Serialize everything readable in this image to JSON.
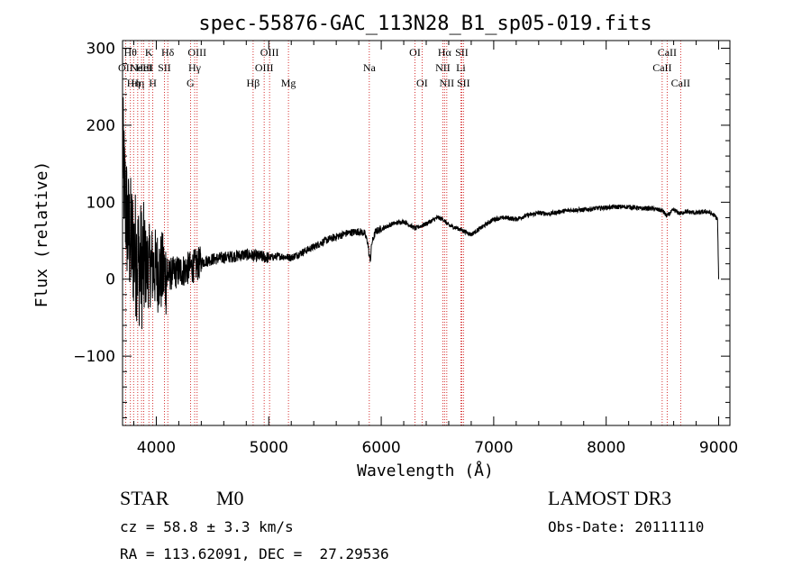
{
  "chart_data": {
    "type": "line",
    "title": "spec-55876-GAC_113N28_B1_sp05-019.fits",
    "xlabel": "Wavelength (Å)",
    "ylabel": "Flux (relative)",
    "xlim": [
      3700,
      9100
    ],
    "ylim": [
      -190,
      310
    ],
    "x_ticks": [
      4000,
      5000,
      6000,
      7000,
      8000,
      9000
    ],
    "x_tick_labels": [
      "4000",
      "5000",
      "6000",
      "7000",
      "8000",
      "9000"
    ],
    "y_ticks": [
      -100,
      0,
      100,
      200,
      300
    ],
    "y_tick_labels": [
      "−100",
      "0",
      "100",
      "200",
      "300"
    ],
    "grid": false,
    "series": [
      {
        "name": "spectrum",
        "color": "#000000",
        "anchors": [
          [
            3700,
            170
          ],
          [
            3720,
            110
          ],
          [
            3750,
            60
          ],
          [
            3800,
            40
          ],
          [
            3850,
            20
          ],
          [
            3900,
            15
          ],
          [
            3950,
            18
          ],
          [
            4000,
            12
          ],
          [
            4050,
            8
          ],
          [
            4100,
            5
          ],
          [
            4150,
            8
          ],
          [
            4200,
            10
          ],
          [
            4250,
            12
          ],
          [
            4300,
            15
          ],
          [
            4350,
            18
          ],
          [
            4400,
            22
          ],
          [
            4450,
            24
          ],
          [
            4500,
            26
          ],
          [
            4600,
            28
          ],
          [
            4700,
            30
          ],
          [
            4800,
            32
          ],
          [
            4900,
            30
          ],
          [
            5000,
            28
          ],
          [
            5100,
            30
          ],
          [
            5200,
            28
          ],
          [
            5300,
            35
          ],
          [
            5400,
            42
          ],
          [
            5500,
            50
          ],
          [
            5600,
            55
          ],
          [
            5700,
            60
          ],
          [
            5800,
            62
          ],
          [
            5850,
            60
          ],
          [
            5880,
            48
          ],
          [
            5895,
            28
          ],
          [
            5905,
            26
          ],
          [
            5915,
            46
          ],
          [
            5950,
            62
          ],
          [
            6000,
            65
          ],
          [
            6100,
            72
          ],
          [
            6200,
            75
          ],
          [
            6300,
            66
          ],
          [
            6400,
            72
          ],
          [
            6500,
            80
          ],
          [
            6550,
            78
          ],
          [
            6600,
            70
          ],
          [
            6700,
            65
          ],
          [
            6800,
            58
          ],
          [
            6900,
            68
          ],
          [
            7000,
            78
          ],
          [
            7100,
            80
          ],
          [
            7200,
            78
          ],
          [
            7300,
            83
          ],
          [
            7400,
            86
          ],
          [
            7500,
            85
          ],
          [
            7600,
            88
          ],
          [
            7700,
            90
          ],
          [
            7800,
            90
          ],
          [
            7900,
            92
          ],
          [
            8000,
            93
          ],
          [
            8100,
            94
          ],
          [
            8200,
            94
          ],
          [
            8300,
            92
          ],
          [
            8400,
            92
          ],
          [
            8500,
            89
          ],
          [
            8540,
            82
          ],
          [
            8600,
            90
          ],
          [
            8660,
            85
          ],
          [
            8700,
            88
          ],
          [
            8800,
            86
          ],
          [
            8900,
            88
          ],
          [
            8960,
            83
          ],
          [
            8990,
            78
          ],
          [
            9000,
            0
          ]
        ]
      }
    ],
    "lines": [
      {
        "wavelength": 3727,
        "labels": [
          {
            "text": "OII",
            "row": 2
          }
        ]
      },
      {
        "wavelength": 3770,
        "labels": [
          {
            "text": "Hθ",
            "row": 1
          }
        ]
      },
      {
        "wavelength": 3798,
        "labels": [
          {
            "text": "Hη",
            "row": 3
          }
        ]
      },
      {
        "wavelength": 3835,
        "labels": [
          {
            "text": "Hη",
            "row": 3
          }
        ]
      },
      {
        "wavelength": 3869,
        "labels": [
          {
            "text": "NeIII",
            "row": 2
          }
        ]
      },
      {
        "wavelength": 3889,
        "labels": [
          {
            "text": "HeI",
            "row": 2
          }
        ]
      },
      {
        "wavelength": 3934,
        "labels": [
          {
            "text": "K",
            "row": 1
          }
        ]
      },
      {
        "wavelength": 3969,
        "labels": [
          {
            "text": "H",
            "row": 3
          }
        ]
      },
      {
        "wavelength": 4072,
        "labels": [
          {
            "text": "SII",
            "row": 2
          }
        ]
      },
      {
        "wavelength": 4102,
        "labels": [
          {
            "text": "Hδ",
            "row": 1
          }
        ]
      },
      {
        "wavelength": 4304,
        "labels": [
          {
            "text": "G",
            "row": 3
          }
        ]
      },
      {
        "wavelength": 4341,
        "labels": [
          {
            "text": "Hγ",
            "row": 2
          }
        ]
      },
      {
        "wavelength": 4363,
        "labels": [
          {
            "text": "OIII",
            "row": 1
          }
        ]
      },
      {
        "wavelength": 4861,
        "labels": [
          {
            "text": "Hβ",
            "row": 3
          }
        ]
      },
      {
        "wavelength": 4959,
        "labels": [
          {
            "text": "OIII",
            "row": 2
          }
        ]
      },
      {
        "wavelength": 5007,
        "labels": [
          {
            "text": "OIII",
            "row": 1
          }
        ]
      },
      {
        "wavelength": 5175,
        "labels": [
          {
            "text": "Mg",
            "row": 3
          }
        ]
      },
      {
        "wavelength": 5894,
        "labels": [
          {
            "text": "Na",
            "row": 2
          }
        ]
      },
      {
        "wavelength": 6300,
        "labels": [
          {
            "text": "OI",
            "row": 1
          }
        ]
      },
      {
        "wavelength": 6363,
        "labels": [
          {
            "text": "OI",
            "row": 3
          }
        ]
      },
      {
        "wavelength": 6548,
        "labels": [
          {
            "text": "NII",
            "row": 2
          }
        ]
      },
      {
        "wavelength": 6563,
        "labels": [
          {
            "text": "Hα",
            "row": 1
          }
        ]
      },
      {
        "wavelength": 6583,
        "labels": [
          {
            "text": "NII",
            "row": 3
          }
        ]
      },
      {
        "wavelength": 6708,
        "labels": [
          {
            "text": "Li",
            "row": 2
          }
        ]
      },
      {
        "wavelength": 6716,
        "labels": [
          {
            "text": "SII",
            "row": 1
          }
        ]
      },
      {
        "wavelength": 6731,
        "labels": [
          {
            "text": "SII",
            "row": 3
          }
        ]
      },
      {
        "wavelength": 8498,
        "labels": [
          {
            "text": "CaII",
            "row": 2
          }
        ]
      },
      {
        "wavelength": 8542,
        "labels": [
          {
            "text": "CaII",
            "row": 1
          }
        ]
      },
      {
        "wavelength": 8662,
        "labels": [
          {
            "text": "CaII",
            "row": 3
          }
        ]
      }
    ]
  },
  "info": {
    "object_class": "STAR",
    "subclass": "M0",
    "survey": "LAMOST DR3",
    "redshift_text": "cz = 58.8 ± 3.3 km/s",
    "obs_date_text": "Obs-Date: 20111110",
    "coords_text": "RA = 113.62091, DEC =  27.29536"
  },
  "colors": {
    "line_marker": "#cc0000",
    "spectrum": "#000000",
    "axes": "#000000"
  }
}
